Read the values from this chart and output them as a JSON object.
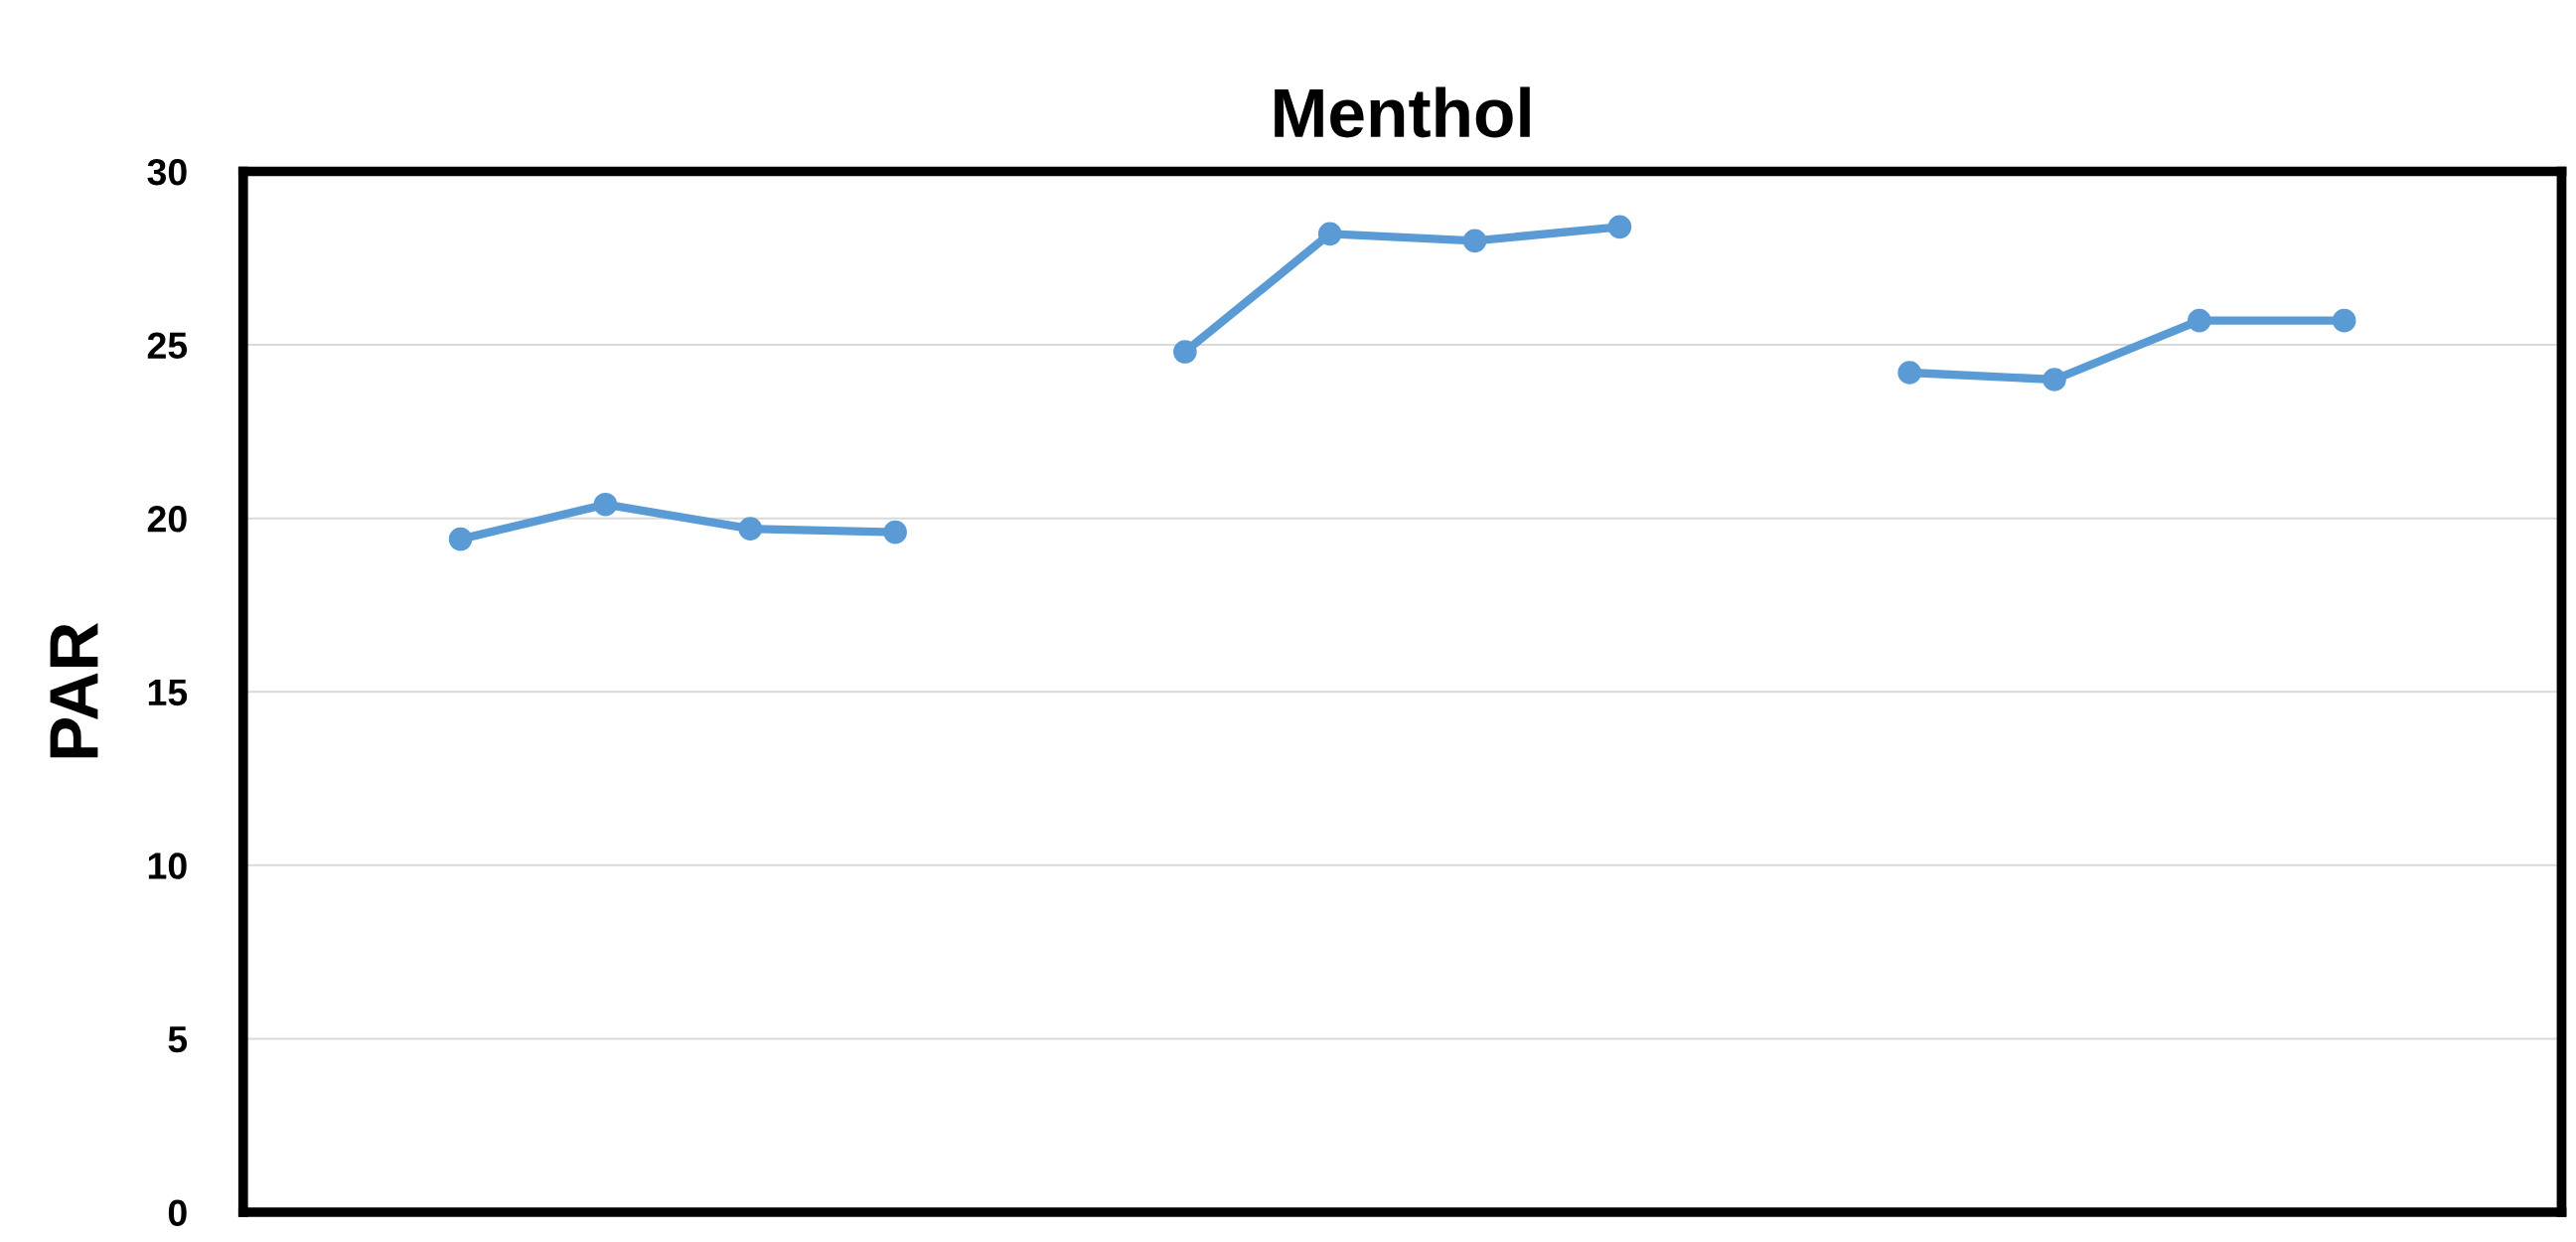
{
  "chart_data": {
    "type": "line",
    "title": "Menthol",
    "ylabel": "PAR",
    "categories": [
      null,
      null,
      null,
      null,
      null,
      null,
      null,
      null,
      null,
      null,
      null,
      null,
      null,
      null,
      null,
      null
    ],
    "series": [
      {
        "color": "#5b9bd5",
        "values": [
          null,
          19.4,
          20.4,
          19.7,
          19.6,
          null,
          24.8,
          28.2,
          28.0,
          28.4,
          null,
          24.2,
          24.0,
          25.7,
          25.7,
          null
        ]
      }
    ],
    "ylim": [
      0,
      30
    ],
    "yticks": [
      0,
      5,
      10,
      15,
      20,
      25,
      30
    ],
    "grid": "y",
    "marker": "circle",
    "line_style": "solid"
  }
}
